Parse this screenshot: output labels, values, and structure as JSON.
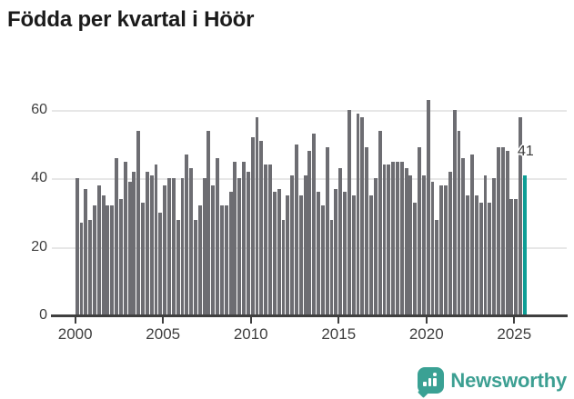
{
  "title": "Födda per kvartal i Höör",
  "chart_data": {
    "type": "bar",
    "title": "Födda per kvartal i Höör",
    "frequency": "quarterly",
    "start_period": "2000 Q1",
    "end_period": "2025 Q3",
    "x_tick_labels": [
      "2000",
      "2005",
      "2010",
      "2015",
      "2020",
      "2025"
    ],
    "y_ticks": [
      0,
      20,
      40,
      60
    ],
    "ylim": [
      0,
      65
    ],
    "grid": "horizontal",
    "series": [
      {
        "name": "Födda",
        "values": [
          40,
          27,
          37,
          28,
          32,
          38,
          35,
          32,
          32,
          46,
          34,
          45,
          39,
          42,
          54,
          33,
          42,
          41,
          44,
          30,
          38,
          40,
          40,
          28,
          40,
          47,
          43,
          28,
          32,
          40,
          54,
          38,
          46,
          32,
          32,
          36,
          45,
          40,
          45,
          42,
          52,
          58,
          51,
          44,
          44,
          36,
          37,
          28,
          35,
          41,
          50,
          35,
          41,
          48,
          53,
          36,
          32,
          49,
          28,
          37,
          43,
          36,
          60,
          35,
          59,
          58,
          49,
          35,
          40,
          54,
          44,
          44,
          45,
          45,
          45,
          43,
          41,
          33,
          49,
          41,
          63,
          39,
          28,
          38,
          38,
          42,
          60,
          54,
          46,
          35,
          47,
          35,
          33,
          41,
          33,
          40,
          49,
          49,
          48,
          34,
          34,
          58,
          41
        ]
      }
    ],
    "highlight": {
      "index": 102,
      "label": "41"
    }
  },
  "colors": {
    "bar": "#6d6d72",
    "highlight": "#0d9e95",
    "grid": "#e7e7e7",
    "axis": "#3f3f3f",
    "tick_text": "#3f3f3f",
    "title_text": "#1b1b1b",
    "brand": "#3c9f92"
  },
  "footer": {
    "brand": "Newsworthy"
  }
}
